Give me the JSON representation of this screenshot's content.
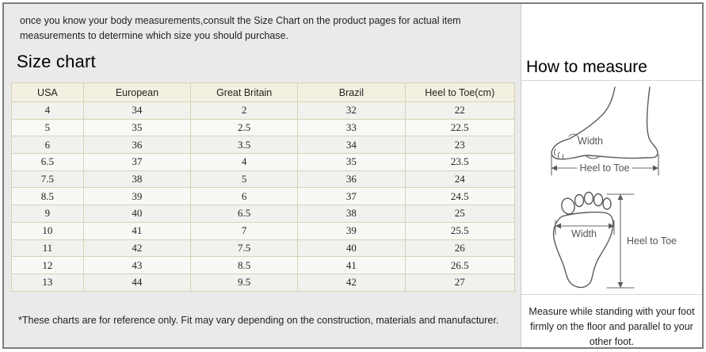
{
  "intro": {
    "text": "once you know your body measurements,consult the Size Chart on the product pages for actual item measurements to determine which size you should purchase."
  },
  "size_chart": {
    "title": "Size chart",
    "table": {
      "headers": [
        "USA",
        "European",
        "Great Britain",
        "Brazil",
        "Heel to Toe(cm)"
      ],
      "rows": [
        [
          "4",
          "34",
          "2",
          "32",
          "22"
        ],
        [
          "5",
          "35",
          "2.5",
          "33",
          "22.5"
        ],
        [
          "6",
          "36",
          "3.5",
          "34",
          "23"
        ],
        [
          "6.5",
          "37",
          "4",
          "35",
          "23.5"
        ],
        [
          "7.5",
          "38",
          "5",
          "36",
          "24"
        ],
        [
          "8.5",
          "39",
          "6",
          "37",
          "24.5"
        ],
        [
          "9",
          "40",
          "6.5",
          "38",
          "25"
        ],
        [
          "10",
          "41",
          "7",
          "39",
          "25.5"
        ],
        [
          "11",
          "42",
          "7.5",
          "40",
          "26"
        ],
        [
          "12",
          "43",
          "8.5",
          "41",
          "26.5"
        ],
        [
          "13",
          "44",
          "9.5",
          "42",
          "27"
        ]
      ]
    },
    "footnote": "*These charts are for reference only. Fit may vary depending on the construction, materials and manufacturer."
  },
  "how_to_measure": {
    "title": "How to measure",
    "side_view": {
      "width_label": "Width",
      "length_label": "Heel to Toe"
    },
    "top_view": {
      "width_label": "Width",
      "length_label": "Heel to Toe"
    },
    "note": "Measure while standing with your foot firmly on the floor and parallel to your other foot."
  },
  "colors": {
    "panel_bg": "#ebeaea",
    "frame_border": "#7d7d7d",
    "table_border": "#d6d3b8",
    "table_header_bg": "#f3f0e1",
    "row_bg": "#f1f1ed",
    "row_alt_bg": "#f8f8f5",
    "diagram_stroke": "#5a5a5a"
  }
}
